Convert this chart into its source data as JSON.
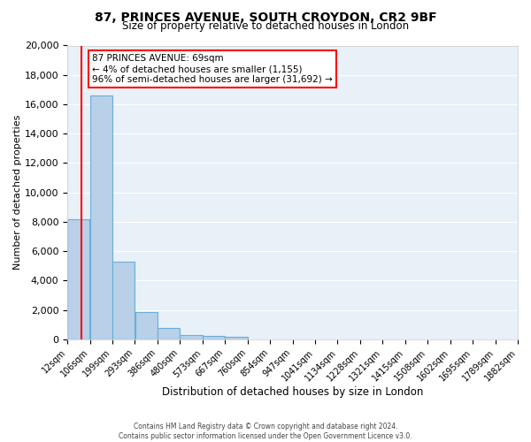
{
  "title_line1": "87, PRINCES AVENUE, SOUTH CROYDON, CR2 9BF",
  "title_line2": "Size of property relative to detached houses in London",
  "xlabel": "Distribution of detached houses by size in London",
  "ylabel": "Number of detached properties",
  "bin_labels": [
    "12sqm",
    "106sqm",
    "199sqm",
    "293sqm",
    "386sqm",
    "480sqm",
    "573sqm",
    "667sqm",
    "760sqm",
    "854sqm",
    "947sqm",
    "1041sqm",
    "1134sqm",
    "1228sqm",
    "1321sqm",
    "1415sqm",
    "1508sqm",
    "1602sqm",
    "1695sqm",
    "1789sqm",
    "1882sqm"
  ],
  "bar_values": [
    8200,
    16600,
    5300,
    1850,
    750,
    300,
    250,
    150,
    0,
    0,
    0,
    0,
    0,
    0,
    0,
    0,
    0,
    0,
    0,
    0
  ],
  "bar_color": "#b8d0e8",
  "bar_edge_color": "#6aaed6",
  "background_color": "#e8f0f8",
  "grid_color": "#ffffff",
  "red_line_x": 69,
  "xmin": 12,
  "xmax": 1882,
  "ylim": [
    0,
    20000
  ],
  "yticks": [
    0,
    2000,
    4000,
    6000,
    8000,
    10000,
    12000,
    14000,
    16000,
    18000,
    20000
  ],
  "annotation_title": "87 PRINCES AVENUE: 69sqm",
  "annotation_line1": "← 4% of detached houses are smaller (1,155)",
  "annotation_line2": "96% of semi-detached houses are larger (31,692) →",
  "footer_line1": "Contains HM Land Registry data © Crown copyright and database right 2024.",
  "footer_line2": "Contains public sector information licensed under the Open Government Licence v3.0."
}
